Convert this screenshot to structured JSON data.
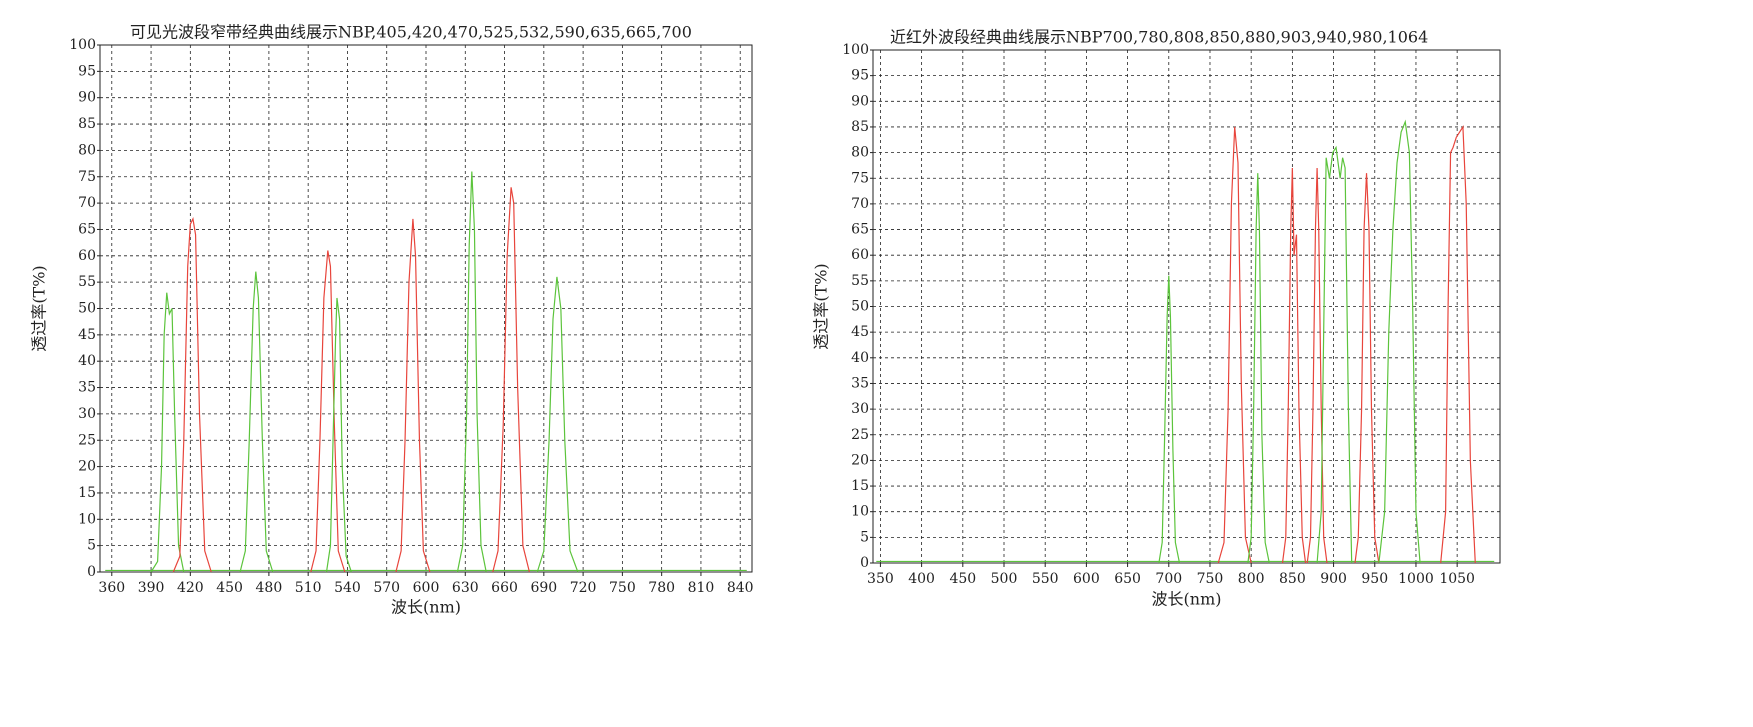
{
  "chart_data": [
    {
      "type": "line",
      "title": "可见光波段窄带经典曲线展示NBP,405,420,470,525,532,590,635,665,700",
      "x_label": "波长(nm)",
      "y_label": "透过率(T%)",
      "xlim": [
        351,
        849
      ],
      "xticks": [
        360,
        390,
        420,
        450,
        480,
        510,
        540,
        570,
        600,
        630,
        660,
        690,
        720,
        750,
        780,
        810,
        840
      ],
      "ylim": [
        0,
        100
      ],
      "yticks": [
        0,
        5,
        10,
        15,
        20,
        25,
        30,
        35,
        40,
        45,
        50,
        55,
        60,
        65,
        70,
        75,
        80,
        85,
        90,
        95,
        100
      ],
      "grid": true,
      "series": [
        {
          "color": "#5cc43c",
          "x": [
            355,
            845
          ],
          "values": [
            0.3,
            0.3
          ]
        },
        {
          "color": "#5cc43c",
          "x": [
            390,
            395,
            398,
            400,
            402,
            404,
            406,
            408,
            411,
            415
          ],
          "values": [
            0,
            2,
            20,
            45,
            53,
            49,
            50,
            30,
            5,
            0
          ]
        },
        {
          "color": "#e8453c",
          "x": [
            407,
            412,
            415,
            418,
            420,
            422,
            424,
            427,
            431,
            436
          ],
          "values": [
            0,
            3,
            25,
            58,
            66,
            67,
            64,
            30,
            4,
            0
          ]
        },
        {
          "color": "#5cc43c",
          "x": [
            458,
            462,
            465,
            468,
            470,
            472,
            475,
            478,
            483
          ],
          "values": [
            0,
            4,
            25,
            50,
            57,
            52,
            25,
            4,
            0
          ]
        },
        {
          "color": "#e8453c",
          "x": [
            512,
            516,
            519,
            522,
            525,
            527,
            530,
            533,
            538
          ],
          "values": [
            0,
            4,
            25,
            52,
            61,
            58,
            28,
            4,
            0
          ]
        },
        {
          "color": "#5cc43c",
          "x": [
            524,
            527,
            529,
            531,
            532,
            534,
            536,
            539,
            543
          ],
          "values": [
            0,
            5,
            25,
            45,
            52,
            48,
            20,
            3,
            0
          ]
        },
        {
          "color": "#e8453c",
          "x": [
            577,
            581,
            584,
            587,
            590,
            592,
            595,
            598,
            603
          ],
          "values": [
            0,
            4,
            25,
            55,
            67,
            60,
            25,
            4,
            0
          ]
        },
        {
          "color": "#5cc43c",
          "x": [
            624,
            628,
            631,
            633,
            635,
            637,
            639,
            642,
            646
          ],
          "values": [
            0,
            5,
            30,
            62,
            76,
            65,
            30,
            5,
            0
          ]
        },
        {
          "color": "#e8453c",
          "x": [
            651,
            655,
            659,
            662,
            665,
            667,
            670,
            674,
            679
          ],
          "values": [
            0,
            4,
            28,
            60,
            73,
            70,
            35,
            5,
            0
          ]
        },
        {
          "color": "#5cc43c",
          "x": [
            685,
            690,
            694,
            697,
            700,
            703,
            706,
            710,
            716
          ],
          "values": [
            0,
            4,
            25,
            48,
            56,
            50,
            25,
            4,
            0
          ]
        }
      ]
    },
    {
      "type": "line",
      "title": "近红外波段经典曲线展示NBP700,780,808,850,880,903,940,980,1064",
      "x_label": "波长(nm)",
      "y_label": "透过率(T%)",
      "xlim": [
        341,
        1102
      ],
      "xticks": [
        350,
        400,
        450,
        500,
        550,
        600,
        650,
        700,
        750,
        800,
        850,
        900,
        950,
        1000,
        1050
      ],
      "ylim": [
        0,
        100
      ],
      "yticks": [
        0,
        5,
        10,
        15,
        20,
        25,
        30,
        35,
        40,
        45,
        50,
        55,
        60,
        65,
        70,
        75,
        80,
        85,
        90,
        95,
        100
      ],
      "grid": true,
      "series": [
        {
          "color": "#5cc43c",
          "x": [
            345,
            1095
          ],
          "values": [
            0.3,
            0.3
          ]
        },
        {
          "color": "#5cc43c",
          "x": [
            688,
            692,
            695,
            698,
            700,
            702,
            705,
            708,
            713
          ],
          "values": [
            0,
            4,
            25,
            48,
            56,
            48,
            22,
            4,
            0
          ]
        },
        {
          "color": "#e8453c",
          "x": [
            760,
            767,
            772,
            776,
            780,
            784,
            788,
            793,
            800
          ],
          "values": [
            0,
            4,
            30,
            70,
            85,
            78,
            35,
            5,
            0
          ]
        },
        {
          "color": "#5cc43c",
          "x": [
            796,
            800,
            803,
            806,
            808,
            810,
            813,
            817,
            822
          ],
          "values": [
            0,
            5,
            30,
            65,
            76,
            65,
            25,
            4,
            0
          ]
        },
        {
          "color": "#e8453c",
          "x": [
            838,
            842,
            845,
            848,
            850,
            852,
            855,
            858,
            862,
            866
          ],
          "values": [
            0,
            5,
            30,
            65,
            77,
            60,
            64,
            30,
            5,
            0
          ]
        },
        {
          "color": "#e8453c",
          "x": [
            868,
            872,
            875,
            878,
            880,
            882,
            885,
            888,
            892
          ],
          "values": [
            0,
            5,
            30,
            65,
            77,
            65,
            30,
            5,
            0
          ]
        },
        {
          "color": "#5cc43c",
          "x": [
            880,
            885,
            888,
            891,
            895,
            899,
            903,
            908,
            911,
            914,
            918,
            922
          ],
          "values": [
            0,
            10,
            45,
            79,
            75,
            80,
            81,
            75,
            79,
            77,
            30,
            0
          ]
        },
        {
          "color": "#e8453c",
          "x": [
            926,
            930,
            934,
            937,
            940,
            943,
            946,
            950,
            955
          ],
          "values": [
            0,
            5,
            30,
            65,
            76,
            65,
            30,
            5,
            0
          ]
        },
        {
          "color": "#5cc43c",
          "x": [
            955,
            962,
            967,
            972,
            977,
            982,
            987,
            992,
            996,
            1000,
            1005
          ],
          "values": [
            0,
            10,
            45,
            65,
            78,
            84,
            86,
            80,
            50,
            10,
            0
          ]
        },
        {
          "color": "#e8453c",
          "x": [
            1030,
            1036,
            1039,
            1042,
            1045,
            1049,
            1053,
            1057,
            1061,
            1066,
            1072
          ],
          "values": [
            0,
            10,
            50,
            80,
            81,
            83,
            84,
            85,
            70,
            20,
            0
          ]
        }
      ]
    }
  ]
}
